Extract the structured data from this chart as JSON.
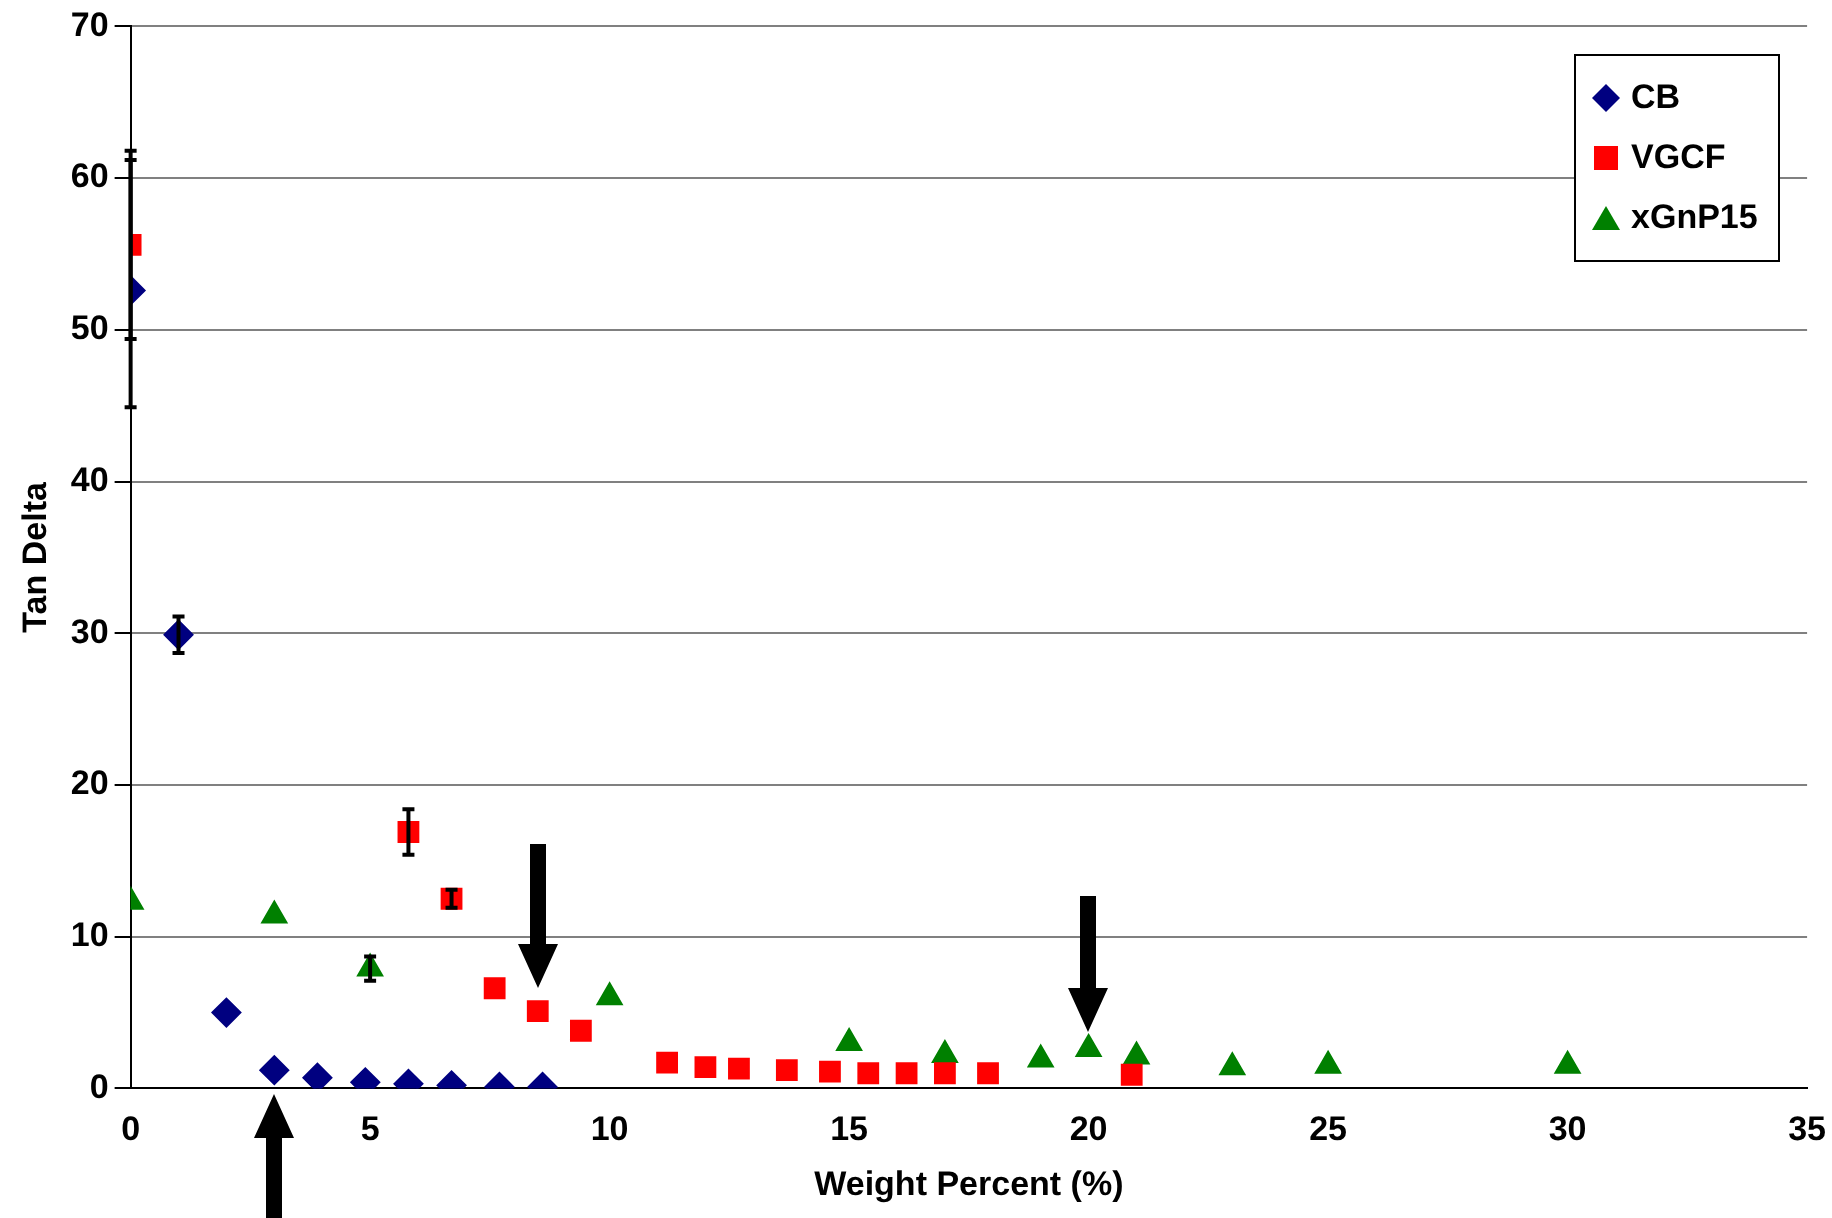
{
  "chart_data": {
    "type": "scatter",
    "xlabel": "Weight Percent (%)",
    "ylabel": "Tan Delta",
    "xlim": [
      0,
      35
    ],
    "xticks": [
      0,
      5,
      10,
      15,
      20,
      25,
      30,
      35
    ],
    "ylim": [
      0,
      70
    ],
    "yticks": [
      0,
      10,
      20,
      30,
      40,
      50,
      60,
      70
    ],
    "grid": "y",
    "legend": "top right",
    "series": [
      {
        "name": "CB",
        "color": "#000080",
        "marker": "diamond",
        "x": [
          0,
          1,
          2,
          3,
          3.9,
          4.9,
          5.8,
          6.7,
          7.7,
          8.6
        ],
        "values": [
          52.6,
          29.9,
          5.0,
          1.2,
          0.7,
          0.4,
          0.3,
          0.2,
          0.1,
          0.1
        ],
        "errors": [
          [
            44.9,
            61.2
          ],
          1.2,
          null,
          null,
          null,
          null,
          null,
          null,
          null,
          null
        ]
      },
      {
        "name": "VGCF",
        "color": "#ff0000",
        "marker": "square",
        "x": [
          0,
          5.8,
          6.7,
          7.6,
          8.5,
          9.4,
          11.2,
          12.0,
          12.7,
          13.7,
          14.6,
          15.4,
          16.2,
          17.0,
          17.9,
          20.9
        ],
        "values": [
          55.6,
          16.9,
          12.5,
          6.6,
          5.1,
          3.8,
          1.7,
          1.4,
          1.3,
          1.2,
          1.1,
          1.0,
          1.0,
          1.0,
          1.0,
          0.9
        ],
        "errors": [
          [
            49.4,
            61.8
          ],
          1.5,
          0.6,
          null,
          null,
          null,
          null,
          null,
          null,
          null,
          null,
          null,
          null,
          null,
          null,
          null
        ]
      },
      {
        "name": "xGnP15",
        "color": "#008000",
        "marker": "triangle",
        "x": [
          0,
          3,
          5,
          10,
          15,
          17,
          19,
          20,
          21,
          23,
          25,
          30
        ],
        "values": [
          12.3,
          11.4,
          7.9,
          6.0,
          3.0,
          2.2,
          1.9,
          2.6,
          2.1,
          1.4,
          1.5,
          1.5
        ],
        "errors": [
          null,
          null,
          0.8,
          null,
          null,
          null,
          null,
          null,
          null,
          null,
          null,
          null
        ]
      }
    ]
  }
}
